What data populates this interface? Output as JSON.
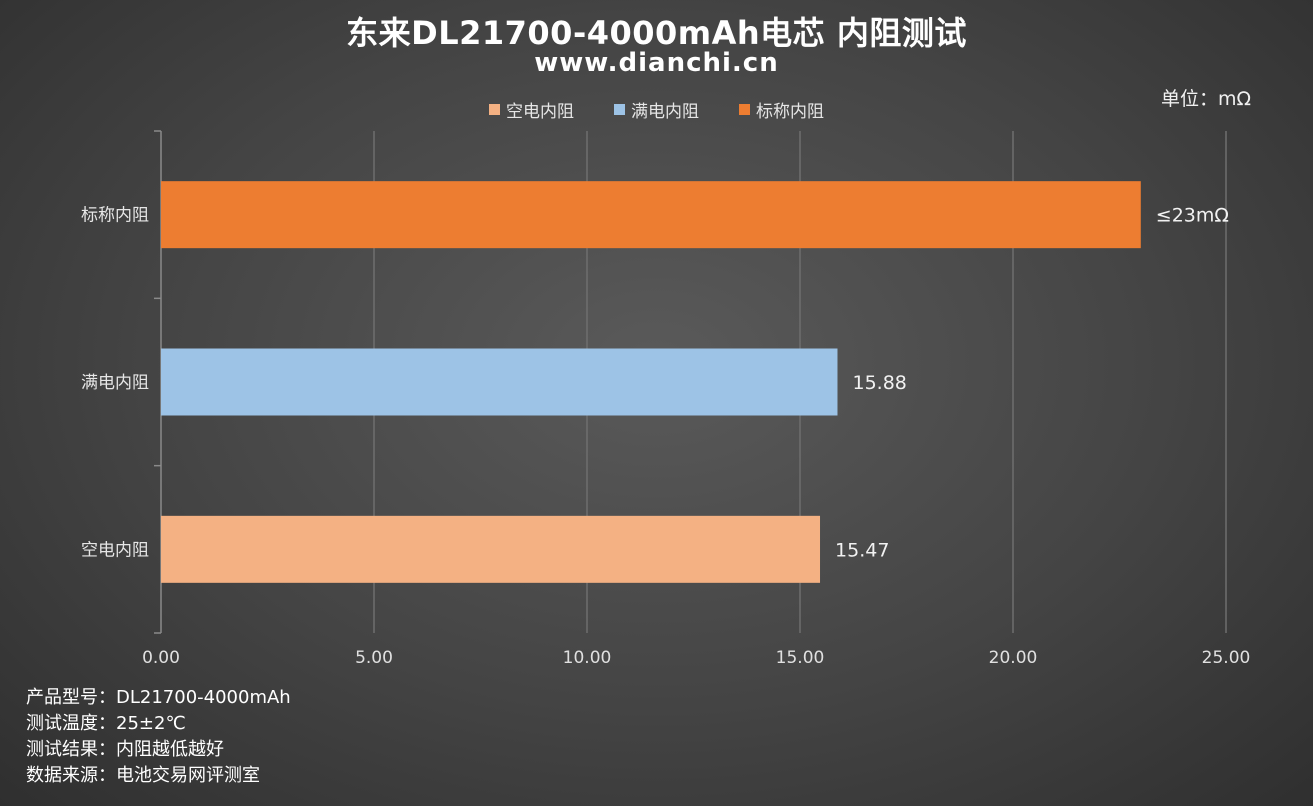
{
  "title": "东来DL21700-4000mAh电芯 内阻测试",
  "subtitle": "www.dianchi.cn",
  "unit_label": "单位：mΩ",
  "legend": [
    {
      "label": "空电内阻",
      "color": "#f4b183"
    },
    {
      "label": "满电内阻",
      "color": "#9dc3e6"
    },
    {
      "label": "标称内阻",
      "color": "#ed7d31"
    }
  ],
  "chart_data": {
    "type": "bar",
    "orientation": "horizontal",
    "categories": [
      "标称内阻",
      "满电内阻",
      "空电内阻"
    ],
    "values": [
      23,
      15.88,
      15.47
    ],
    "data_labels": [
      "≤23mΩ",
      "15.88",
      "15.47"
    ],
    "colors": [
      "#ed7d31",
      "#9dc3e6",
      "#f4b183"
    ],
    "xlim": [
      0,
      25
    ],
    "x_ticks": [
      "0.00",
      "5.00",
      "10.00",
      "15.00",
      "20.00",
      "25.00"
    ],
    "x_tick_values": [
      0,
      5,
      10,
      15,
      20,
      25
    ],
    "grid": true,
    "legend_position": "top-center"
  },
  "footer": [
    {
      "key": "产品型号：",
      "value": "DL21700-4000mAh"
    },
    {
      "key": "测试温度：",
      "value": "25±2℃"
    },
    {
      "key": "测试结果：",
      "value": "内阻越低越好"
    },
    {
      "key": "数据来源：",
      "value": "电池交易网评测室"
    }
  ]
}
